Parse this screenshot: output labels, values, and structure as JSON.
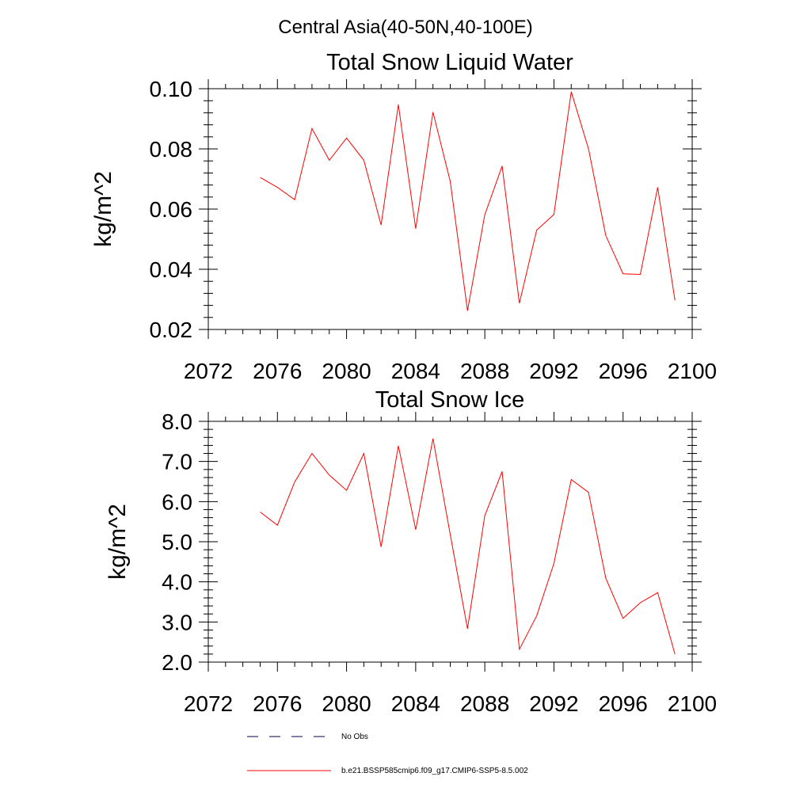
{
  "figure_title": "Central Asia(40-50N,40-100E)",
  "legend": [
    {
      "label": "No Obs",
      "color": "#00004d",
      "style": "dashed"
    },
    {
      "label": "b.e21.BSSP585cmip6.f09_g17.CMIP6-SSP5-8.5.002",
      "color": "#ff0000",
      "style": "solid"
    }
  ],
  "chart_data": [
    {
      "type": "line",
      "title": "Total Snow Liquid Water",
      "ylabel": "kg/m^2",
      "xlabel": "",
      "xlim": [
        2072,
        2100
      ],
      "ylim": [
        0.02,
        0.1
      ],
      "xticks": [
        "2072",
        "2076",
        "2080",
        "2084",
        "2088",
        "2092",
        "2096",
        "2100"
      ],
      "yticks": [
        "0.02",
        "0.04",
        "0.06",
        "0.08",
        "0.10"
      ],
      "x": [
        2075,
        2076,
        2077,
        2078,
        2079,
        2080,
        2081,
        2082,
        2083,
        2084,
        2085,
        2086,
        2087,
        2088,
        2089,
        2090,
        2091,
        2092,
        2093,
        2094,
        2095,
        2096,
        2097,
        2098,
        2099
      ],
      "series": [
        {
          "name": "b.e21.BSSP585cmip6.f09_g17.CMIP6-SSP5-8.5.002",
          "color": "#ff0000",
          "values": [
            0.0705,
            0.0672,
            0.0631,
            0.0868,
            0.0762,
            0.0836,
            0.0762,
            0.0547,
            0.0947,
            0.0535,
            0.0922,
            0.0692,
            0.0262,
            0.0581,
            0.0743,
            0.0287,
            0.053,
            0.0582,
            0.099,
            0.08,
            0.0512,
            0.0385,
            0.0383,
            0.0672,
            0.0297
          ]
        }
      ]
    },
    {
      "type": "line",
      "title": "Total Snow Ice",
      "ylabel": "kg/m^2",
      "xlabel": "",
      "xlim": [
        2072,
        2100
      ],
      "ylim": [
        2.0,
        8.0
      ],
      "xticks": [
        "2072",
        "2076",
        "2080",
        "2084",
        "2088",
        "2092",
        "2096",
        "2100"
      ],
      "yticks": [
        "2.0",
        "3.0",
        "4.0",
        "5.0",
        "6.0",
        "7.0",
        "8.0"
      ],
      "x": [
        2075,
        2076,
        2077,
        2078,
        2079,
        2080,
        2081,
        2082,
        2083,
        2084,
        2085,
        2086,
        2087,
        2088,
        2089,
        2090,
        2091,
        2092,
        2093,
        2094,
        2095,
        2096,
        2097,
        2098,
        2099
      ],
      "series": [
        {
          "name": "b.e21.BSSP585cmip6.f09_g17.CMIP6-SSP5-8.5.002",
          "color": "#ff0000",
          "values": [
            5.74,
            5.41,
            6.49,
            7.2,
            6.66,
            6.28,
            7.2,
            4.87,
            7.39,
            5.3,
            7.57,
            5.18,
            2.83,
            5.65,
            6.75,
            2.32,
            3.15,
            4.46,
            6.55,
            6.23,
            4.09,
            3.09,
            3.48,
            3.73,
            2.2
          ]
        }
      ]
    }
  ]
}
